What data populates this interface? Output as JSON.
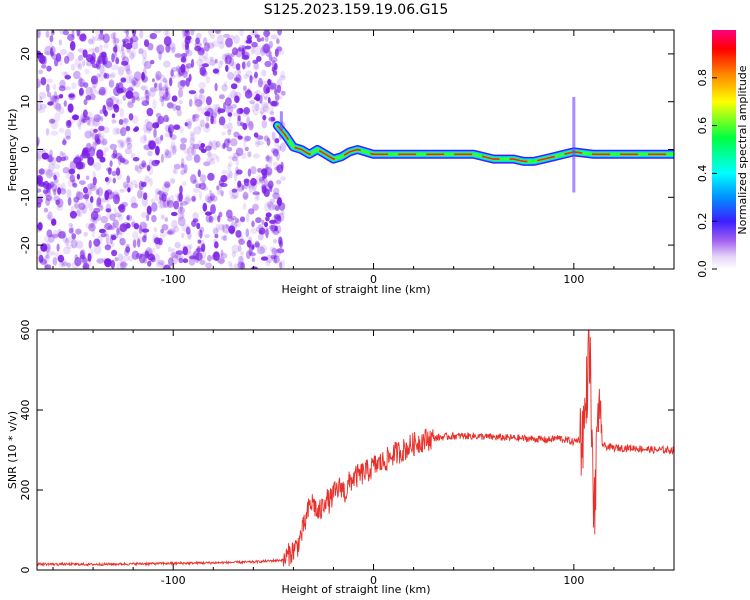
{
  "title": "S125.2023.159.19.06.G15",
  "colors": {
    "snr_line": "#e8302a",
    "noise_dots": "#7a1fe6",
    "axis": "#000000"
  },
  "chart_data": [
    {
      "type": "heatmap",
      "name": "spectrogram",
      "xlabel": "Height of straight line (km)",
      "ylabel": "Frequency (Hz)",
      "xlim": [
        -168,
        150
      ],
      "ylim": [
        -25,
        25
      ],
      "x_ticks": [
        -100,
        0,
        100
      ],
      "y_ticks": [
        -20,
        -10,
        0,
        10,
        20
      ],
      "noise_region_x": [
        -168,
        -48
      ],
      "ridge": {
        "x": [
          -48,
          -44,
          -40,
          -36,
          -32,
          -28,
          -24,
          -20,
          -16,
          -12,
          -8,
          -4,
          0,
          10,
          30,
          50,
          60,
          70,
          75,
          80,
          85,
          90,
          95,
          100,
          110,
          130,
          150
        ],
        "y": [
          5,
          3,
          0.5,
          0,
          -1,
          0,
          -1,
          -2,
          -1.5,
          -0.5,
          0,
          -0.5,
          -1,
          -1,
          -1,
          -1,
          -2,
          -2,
          -2.5,
          -2.5,
          -2,
          -1.5,
          -1,
          -0.5,
          -1,
          -1,
          -1
        ]
      },
      "colorbar": {
        "label": "Normalized spectral amplitude",
        "range": [
          0,
          1
        ],
        "ticks": [
          "0.0",
          "0.2",
          "0.4",
          "0.6",
          "0.8"
        ]
      },
      "legend": "colorbar-right"
    },
    {
      "type": "line",
      "name": "snr",
      "xlabel": "Height of straight line (km)",
      "ylabel": "SNR (10 * v/v)",
      "xlim": [
        -168,
        150
      ],
      "ylim": [
        0,
        600
      ],
      "x_ticks": [
        -100,
        0,
        100
      ],
      "y_ticks": [
        0,
        200,
        400,
        600
      ],
      "series": [
        {
          "x": [
            -168,
            -140,
            -110,
            -80,
            -60,
            -45,
            -38,
            -34,
            -32,
            -30,
            -28,
            -26,
            -24,
            -22,
            -20,
            -18,
            -16,
            -14,
            -12,
            -10,
            -6,
            -2,
            0,
            5,
            10,
            15,
            20,
            25,
            30,
            40,
            50,
            60,
            70,
            80,
            87,
            92,
            96,
            100,
            104,
            106,
            107,
            108,
            109,
            110,
            111,
            112,
            113,
            115,
            120,
            130,
            140,
            150
          ],
          "values": [
            15,
            14,
            16,
            18,
            20,
            25,
            60,
            120,
            160,
            170,
            140,
            150,
            180,
            170,
            190,
            200,
            210,
            190,
            220,
            230,
            240,
            250,
            260,
            270,
            290,
            300,
            315,
            325,
            330,
            335,
            335,
            332,
            330,
            328,
            325,
            330,
            325,
            320,
            330,
            400,
            520,
            560,
            300,
            150,
            200,
            450,
            330,
            310,
            305,
            305,
            300,
            300
          ]
        }
      ],
      "grid": false
    }
  ]
}
